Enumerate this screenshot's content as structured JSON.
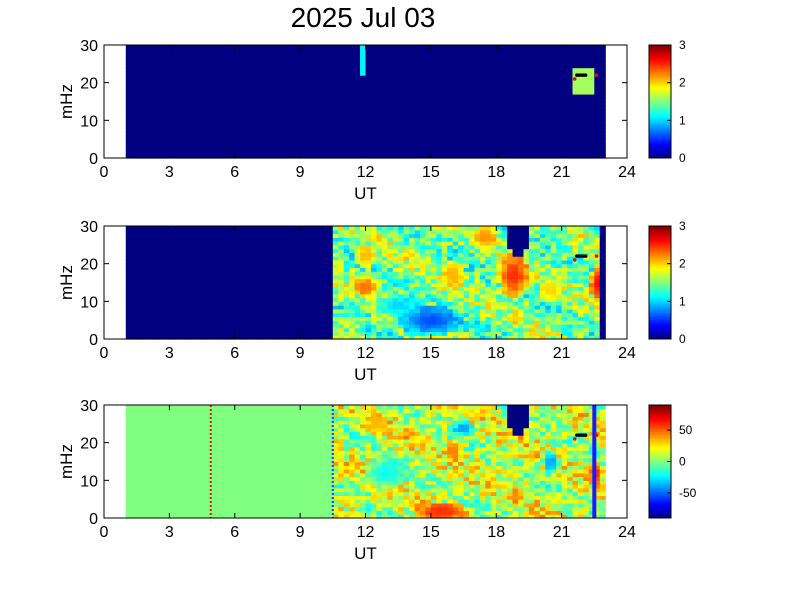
{
  "figure": {
    "title": "2025 Jul 03",
    "background": "#ffffff"
  },
  "colormap": "jet",
  "chart_data": [
    {
      "type": "heatmap",
      "panel": 1,
      "xlabel": "UT",
      "ylabel": "mHz",
      "xlim": [
        0,
        24
      ],
      "ylim": [
        0,
        30
      ],
      "x_ticks": [
        0,
        3,
        6,
        9,
        12,
        15,
        18,
        21,
        24
      ],
      "y_ticks": [
        0,
        10,
        20,
        30
      ],
      "data_extent_ut": [
        1,
        23
      ],
      "background_value": 0,
      "colorbar": {
        "range": [
          0,
          3
        ],
        "ticks": [
          0,
          1,
          2,
          3
        ]
      },
      "features": [
        {
          "ut": [
            11.8,
            12.1
          ],
          "mhz": [
            22,
            30
          ],
          "value": 1.1
        },
        {
          "ut": [
            21.4,
            22.6
          ],
          "mhz": [
            17,
            24
          ],
          "value": 1.6
        }
      ],
      "markers": [
        {
          "ut": 21.7,
          "mhz": 22,
          "color": "black"
        },
        {
          "ut": 21.8,
          "mhz": 22,
          "color": "black"
        },
        {
          "ut": 21.9,
          "mhz": 22,
          "color": "black"
        },
        {
          "ut": 22.0,
          "mhz": 22,
          "color": "black"
        },
        {
          "ut": 22.1,
          "mhz": 22,
          "color": "black"
        },
        {
          "ut": 21.6,
          "mhz": 21,
          "color": "#e01010"
        },
        {
          "ut": 22.6,
          "mhz": 22,
          "color": "#e01010"
        }
      ]
    },
    {
      "type": "heatmap",
      "panel": 2,
      "xlabel": "UT",
      "ylabel": "mHz",
      "xlim": [
        0,
        24
      ],
      "ylim": [
        0,
        30
      ],
      "x_ticks": [
        0,
        3,
        6,
        9,
        12,
        15,
        18,
        21,
        24
      ],
      "y_ticks": [
        0,
        10,
        20,
        30
      ],
      "data_extent_ut": [
        1,
        23
      ],
      "low_region_ut": [
        1,
        10.5
      ],
      "low_region_value": 0,
      "field_mean": 1.5,
      "field_ut": [
        10.5,
        23
      ],
      "colorbar": {
        "range": [
          0,
          3
        ],
        "ticks": [
          0,
          1,
          2,
          3
        ]
      },
      "gaps": [
        {
          "ut": [
            18.5,
            19.5
          ],
          "mhz_from": 22,
          "value": 0
        },
        {
          "ut": [
            22.8,
            23
          ],
          "mhz_from": 0,
          "value": 0
        }
      ],
      "features": [
        {
          "ut": 12,
          "mhz": 14,
          "r_ut": 0.6,
          "r_mhz": 3,
          "value": 2.3
        },
        {
          "ut": 12,
          "mhz": 22,
          "r_ut": 0.5,
          "r_mhz": 3,
          "value": 2.1
        },
        {
          "ut": 15,
          "mhz": 5,
          "r_ut": 1.5,
          "r_mhz": 4,
          "value": 0.6
        },
        {
          "ut": 16,
          "mhz": 17,
          "r_ut": 0.6,
          "r_mhz": 4,
          "value": 2.1
        },
        {
          "ut": 18.8,
          "mhz": 17,
          "r_ut": 0.7,
          "r_mhz": 6,
          "value": 2.5
        },
        {
          "ut": 17.5,
          "mhz": 27,
          "r_ut": 0.6,
          "r_mhz": 3,
          "value": 2.2
        },
        {
          "ut": 20.5,
          "mhz": 13,
          "r_ut": 0.6,
          "r_mhz": 3,
          "value": 2.0
        },
        {
          "ut": 22.6,
          "mhz": 15,
          "r_ut": 0.3,
          "r_mhz": 5,
          "value": 2.6
        },
        {
          "ut": 13.5,
          "mhz": 9,
          "r_ut": 1.0,
          "r_mhz": 3,
          "value": 1.0
        }
      ],
      "markers": [
        {
          "ut": 21.7,
          "mhz": 22,
          "color": "black"
        },
        {
          "ut": 21.8,
          "mhz": 22,
          "color": "black"
        },
        {
          "ut": 21.9,
          "mhz": 22,
          "color": "black"
        },
        {
          "ut": 22.0,
          "mhz": 22,
          "color": "black"
        },
        {
          "ut": 22.1,
          "mhz": 22,
          "color": "black"
        },
        {
          "ut": 21.6,
          "mhz": 21,
          "color": "#e01010"
        },
        {
          "ut": 22.6,
          "mhz": 22,
          "color": "#e01010"
        }
      ]
    },
    {
      "type": "heatmap",
      "panel": 3,
      "xlabel": "UT",
      "ylabel": "mHz",
      "xlim": [
        0,
        24
      ],
      "ylim": [
        0,
        30
      ],
      "x_ticks": [
        0,
        3,
        6,
        9,
        12,
        15,
        18,
        21,
        24
      ],
      "y_ticks": [
        0,
        10,
        20,
        30
      ],
      "data_extent_ut": [
        1,
        23
      ],
      "low_region_ut": [
        1,
        10.5
      ],
      "low_region_value": 0,
      "field_mean": 12,
      "field_ut": [
        10.5,
        23
      ],
      "colorbar": {
        "range": [
          -90,
          90
        ],
        "ticks": [
          -50,
          0,
          50
        ]
      },
      "gaps": [
        {
          "ut": [
            18.5,
            19.5
          ],
          "mhz_from": 22,
          "value": -90
        }
      ],
      "vertical_lines": [
        {
          "ut": 4.9,
          "style": "dotted",
          "color": "#cc2200"
        },
        {
          "ut": 10.5,
          "style": "dotted",
          "color": "#1a3cff"
        },
        {
          "ut": 22.5,
          "style": "solid",
          "color": "#1a1aff"
        }
      ],
      "features": [
        {
          "ut": 15.5,
          "mhz": 2,
          "r_ut": 1.2,
          "r_mhz": 2.5,
          "value": 60
        },
        {
          "ut": 16,
          "mhz": 18,
          "r_ut": 0.4,
          "r_mhz": 3,
          "value": 45
        },
        {
          "ut": 12.5,
          "mhz": 25,
          "r_ut": 0.6,
          "r_mhz": 3,
          "value": 35
        },
        {
          "ut": 20.5,
          "mhz": 15,
          "r_ut": 0.4,
          "r_mhz": 3,
          "value": -40
        },
        {
          "ut": 22.6,
          "mhz": 12,
          "r_ut": 0.3,
          "r_mhz": 3,
          "value": 60
        },
        {
          "ut": 13,
          "mhz": 12,
          "r_ut": 1.0,
          "r_mhz": 4,
          "value": -20
        },
        {
          "ut": 16.5,
          "mhz": 24,
          "r_ut": 0.5,
          "r_mhz": 2,
          "value": -40
        }
      ],
      "markers": [
        {
          "ut": 21.7,
          "mhz": 22,
          "color": "black"
        },
        {
          "ut": 21.8,
          "mhz": 22,
          "color": "black"
        },
        {
          "ut": 21.9,
          "mhz": 22,
          "color": "black"
        },
        {
          "ut": 22.0,
          "mhz": 22,
          "color": "black"
        },
        {
          "ut": 22.1,
          "mhz": 22,
          "color": "black"
        },
        {
          "ut": 21.6,
          "mhz": 21,
          "color": "#e01010"
        },
        {
          "ut": 22.6,
          "mhz": 22,
          "color": "#e01010"
        }
      ]
    }
  ]
}
